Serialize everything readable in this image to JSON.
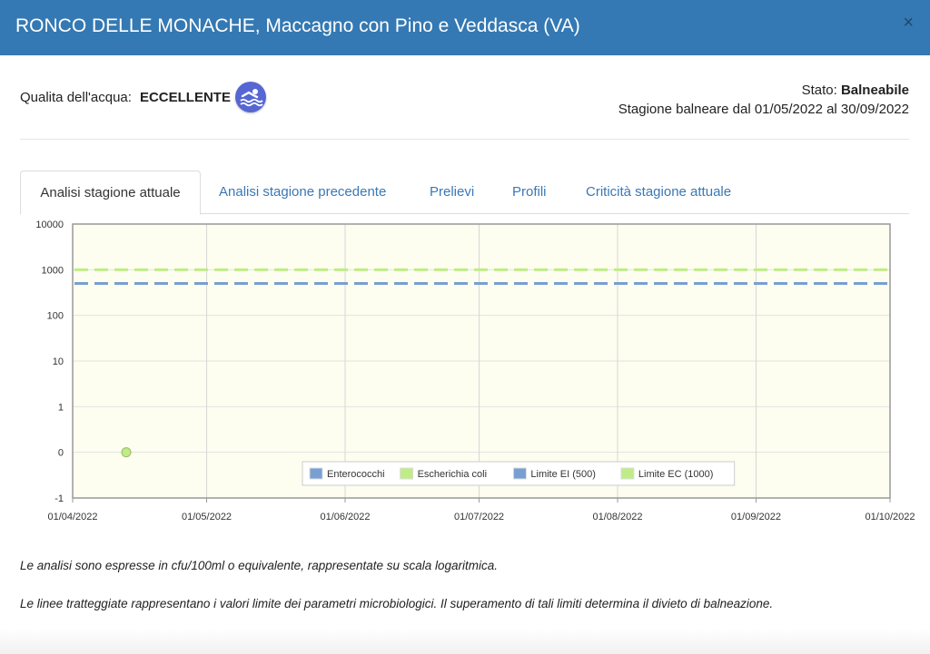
{
  "window": {
    "title": "RONCO DELLE MONACHE, Maccagno con Pino e Veddasca (VA)",
    "close_label": "×"
  },
  "quality": {
    "label": "Qualita dell'acqua:",
    "value": "ECCELLENTE",
    "icon": "swimmer-icon"
  },
  "status": {
    "label": "Stato: ",
    "value": "Balneabile",
    "season": "Stagione balneare dal 01/05/2022 al 30/09/2022"
  },
  "tabs": [
    {
      "label": "Analisi stagione attuale",
      "active": true
    },
    {
      "label": "Analisi stagione precedente",
      "active": false
    },
    {
      "label": "Prelievi",
      "active": false
    },
    {
      "label": "Profili",
      "active": false
    },
    {
      "label": "Criticità stagione attuale",
      "active": false
    }
  ],
  "chart_data": {
    "type": "line",
    "title": "",
    "xlabel": "",
    "ylabel": "",
    "y_scale": "log",
    "y_ticks": [
      "10000",
      "1000",
      "100",
      "10",
      "1",
      "0",
      "-1"
    ],
    "x_ticks": [
      "01/04/2022",
      "01/05/2022",
      "01/06/2022",
      "01/07/2022",
      "01/08/2022",
      "01/09/2022",
      "01/10/2022"
    ],
    "xlim": [
      "01/04/2022",
      "01/10/2022"
    ],
    "grid": true,
    "background": "#fdfdf0",
    "legend_position": "bottom-right",
    "series": [
      {
        "name": "Enterococchi",
        "color": "#779fd2",
        "style": "points",
        "points": []
      },
      {
        "name": "Escherichia coli",
        "color": "#c0ec86",
        "style": "points",
        "points": [
          {
            "x": "13/04/2022",
            "y": "0"
          }
        ]
      },
      {
        "name": "Limite EI (500)",
        "color": "#779fd2",
        "style": "dashed",
        "value": 500
      },
      {
        "name": "Limite EC (1000)",
        "color": "#c0ec86",
        "style": "dashed",
        "value": 1000
      }
    ]
  },
  "notes": [
    "Le analisi sono espresse in cfu/100ml o equivalente, rappresentate su scala logaritmica.",
    "Le linee tratteggiate rappresentano i valori limite dei parametri microbiologici. Il superamento di tali limiti determina il divieto di balneazione."
  ]
}
